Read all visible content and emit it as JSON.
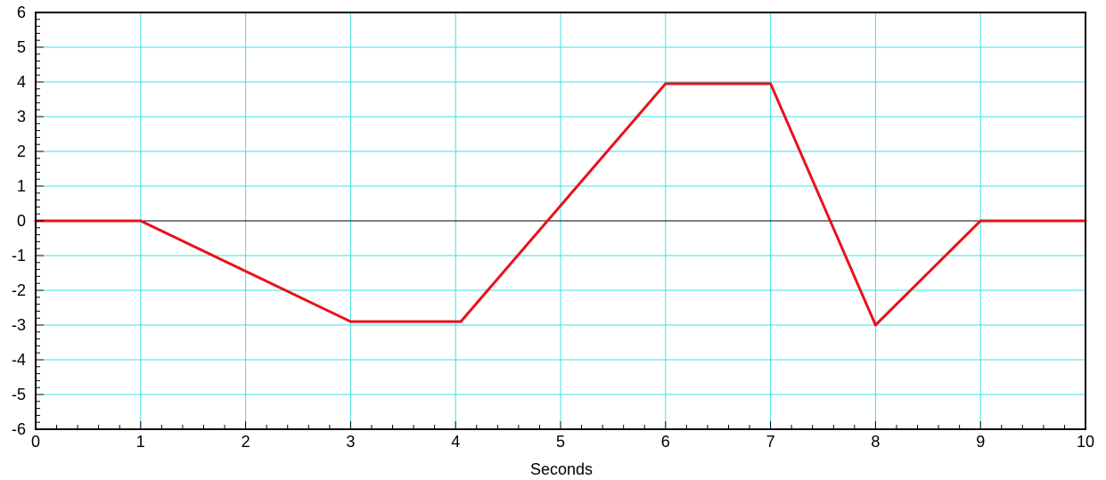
{
  "chart_data": {
    "type": "line",
    "title": "",
    "xlabel": "Seconds",
    "ylabel": "",
    "xlim": [
      0,
      10
    ],
    "ylim": [
      -6,
      6
    ],
    "x_ticks": [
      0,
      1,
      2,
      3,
      4,
      5,
      6,
      7,
      8,
      9,
      10
    ],
    "y_ticks": [
      6,
      5,
      4,
      3,
      2,
      1,
      0,
      -1,
      -2,
      -3,
      -4,
      -5,
      -6
    ],
    "x_tick_labels": [
      "0",
      "1",
      "2",
      "3",
      "4",
      "5",
      "6",
      "7",
      "8",
      "9",
      "10"
    ],
    "y_tick_labels": [
      "6",
      "5",
      "4",
      "3",
      "2",
      "1",
      "0",
      "-1",
      "-2",
      "-3",
      "-4",
      "-5",
      "-6"
    ],
    "grid": true,
    "zero_line": true,
    "minor_ticks_per_interval": 5,
    "colors": {
      "series": "#e8121a",
      "grid": "#3ee0e6",
      "zero_line": "#000000",
      "frame": "#000000"
    },
    "series": [
      {
        "x": [
          0,
          1,
          3,
          4.05,
          6,
          7,
          8,
          9,
          10
        ],
        "y": [
          0,
          0,
          -2.9,
          -2.9,
          3.95,
          3.95,
          -3.0,
          0,
          0
        ]
      }
    ]
  }
}
